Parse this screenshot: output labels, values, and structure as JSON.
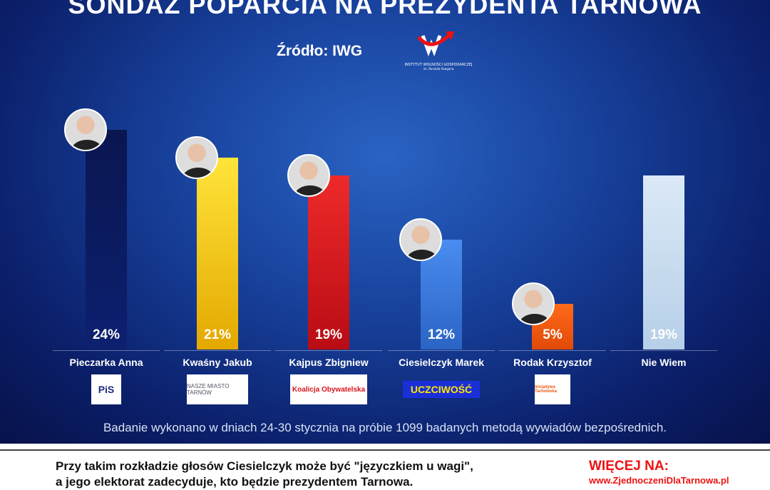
{
  "chart_data": {
    "type": "bar",
    "title": "SONDAŻ POPARCIA NA PREZYDENTA TARNOWA",
    "subtitle": "Źródło: IWG",
    "categories": [
      "Pieczarka Anna",
      "Kwaśny Jakub",
      "Kajpus Zbigniew",
      "Ciesielczyk Marek",
      "Rodak Krzysztof",
      "Nie Wiem"
    ],
    "values": [
      24,
      21,
      19,
      12,
      5,
      19
    ],
    "value_labels": [
      "24%",
      "21%",
      "19%",
      "12%",
      "5%",
      "19%"
    ],
    "colors": [
      "#0b1a5e",
      "#f2c200",
      "#d8141c",
      "#3a7fe0",
      "#f05a12",
      "#c9def2"
    ],
    "party_logos": [
      "PiS",
      "NASZE MIASTO TARNÓW",
      "Koalicja Obywatelska",
      "UCZCIWOŚĆ",
      "Inicjatywa Tarnowska",
      ""
    ],
    "ylim": [
      0,
      26
    ],
    "grid": false,
    "note": "Badanie wykonano w dniach 24-30 stycznia na próbie 1099 badanych metodą wywiadów bezpośrednich."
  },
  "logo": {
    "text": "INSTYTUT WOLNOŚCI GOSPODARCZEJ",
    "sub": "im. Ronalda Reagana"
  },
  "footer": {
    "caption_line1": "Przy takim rozkładzie głosów Ciesielczyk może być \"języczkiem u wagi\",",
    "caption_line2": "a jego elektorat zadecyduje, kto będzie prezydentem Tarnowa.",
    "more_label": "WIĘCEJ NA:",
    "url": "www.ZjednoczeniDlaTarnowa.pl"
  }
}
